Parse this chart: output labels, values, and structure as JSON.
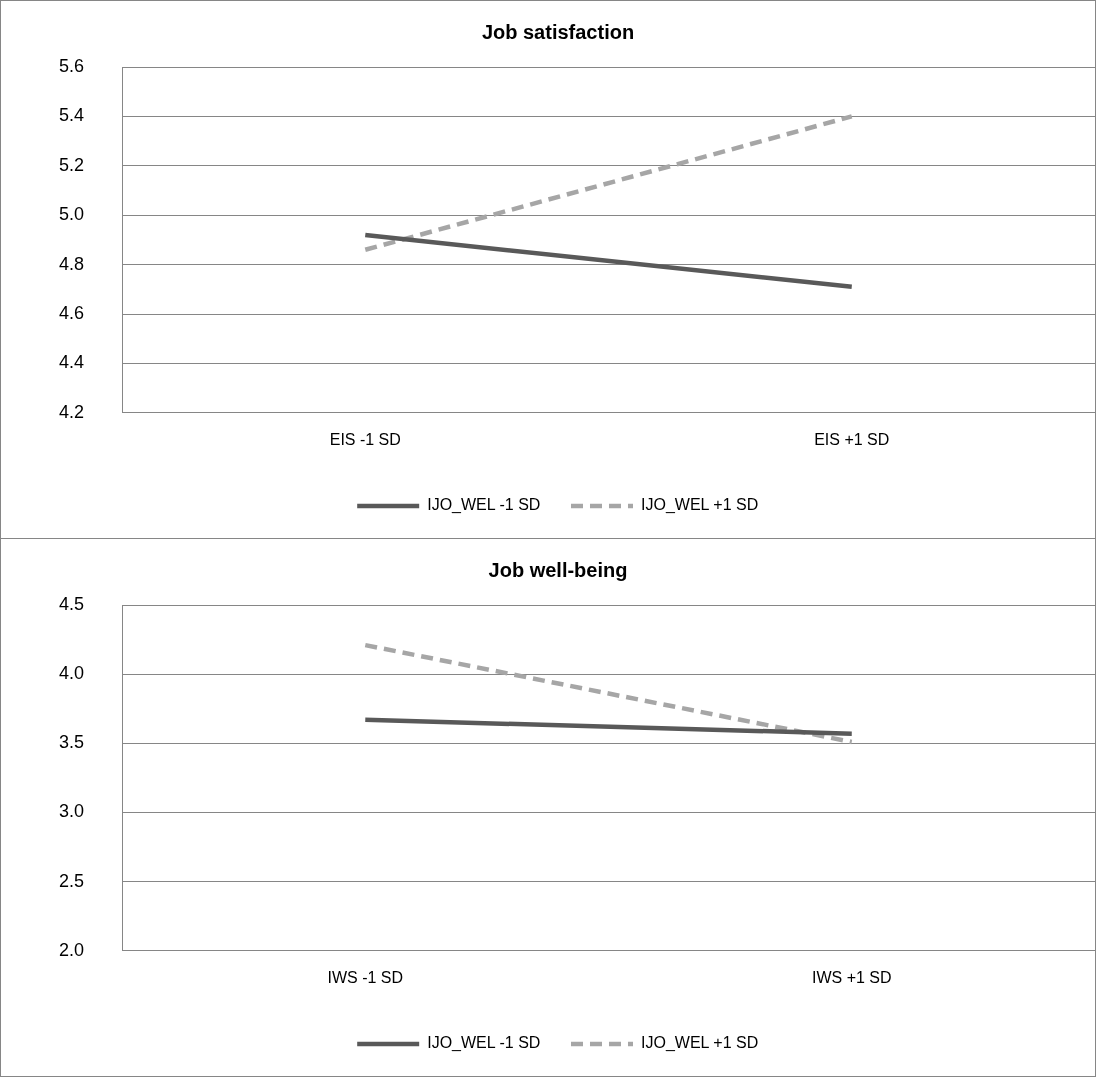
{
  "chart_data": [
    {
      "type": "line",
      "title": "Job satisfaction",
      "categories": [
        "EIS -1 SD",
        "EIS +1 SD"
      ],
      "series": [
        {
          "name": "IJO_WEL -1 SD",
          "color": "#595959",
          "values": [
            4.92,
            4.71
          ],
          "line_style": "solid"
        },
        {
          "name": "IJO_WEL +1 SD",
          "color": "#a6a6a6",
          "values": [
            4.86,
            5.4
          ],
          "line_style": "dashed"
        }
      ],
      "ylim": [
        4.2,
        5.6
      ],
      "yticks": [
        {
          "value": 4.2,
          "label": "4.2"
        },
        {
          "value": 4.4,
          "label": "4.4"
        },
        {
          "value": 4.6,
          "label": "4.6"
        },
        {
          "value": 4.8,
          "label": "4.8"
        },
        {
          "value": 5.0,
          "label": "5.0"
        },
        {
          "value": 5.2,
          "label": "5.2"
        },
        {
          "value": 5.4,
          "label": "5.4"
        },
        {
          "value": 5.6,
          "label": "5.6"
        }
      ],
      "grid": "y",
      "legend": "bottom",
      "marker": "none"
    },
    {
      "type": "line",
      "title": "Job well-being",
      "categories": [
        "IWS -1 SD",
        "IWS +1 SD"
      ],
      "series": [
        {
          "name": "IJO_WEL -1 SD",
          "color": "#595959",
          "values": [
            3.67,
            3.57
          ],
          "line_style": "solid"
        },
        {
          "name": "IJO_WEL +1 SD",
          "color": "#a6a6a6",
          "values": [
            4.21,
            3.51
          ],
          "line_style": "dashed"
        }
      ],
      "ylim": [
        2.0,
        4.5
      ],
      "yticks": [
        {
          "value": 2.0,
          "label": "2.0"
        },
        {
          "value": 2.5,
          "label": "2.5"
        },
        {
          "value": 3.0,
          "label": "3.0"
        },
        {
          "value": 3.5,
          "label": "3.5"
        },
        {
          "value": 4.0,
          "label": "4.0"
        },
        {
          "value": 4.5,
          "label": "4.5"
        }
      ],
      "grid": "y",
      "legend": "bottom",
      "marker": "none"
    }
  ]
}
